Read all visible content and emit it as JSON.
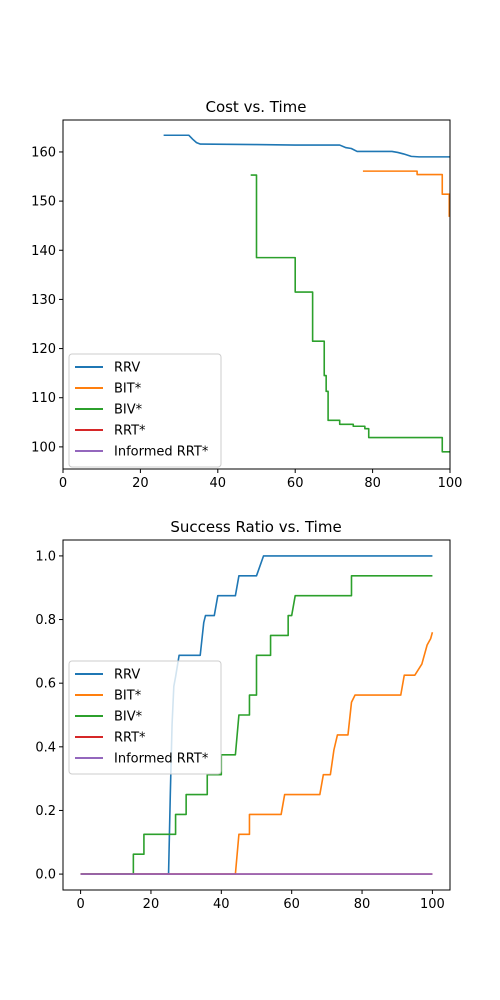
{
  "chart_data": [
    {
      "type": "line",
      "title": "Cost vs. Time",
      "xlabel": "",
      "ylabel": "",
      "xlim": [
        0,
        100
      ],
      "ylim": [
        95.5,
        166.5
      ],
      "xticks": [
        0,
        20,
        40,
        60,
        80,
        100
      ],
      "yticks": [
        100,
        110,
        120,
        130,
        140,
        150,
        160
      ],
      "grid": false,
      "legend": "lower-left",
      "series": [
        {
          "name": "RRV",
          "color": "#1f77b4",
          "points": [
            [
              26,
              163.4
            ],
            [
              32.5,
              163.4
            ],
            [
              33.5,
              162.6
            ],
            [
              34.5,
              161.9
            ],
            [
              35.5,
              161.6
            ],
            [
              50,
              161.5
            ],
            [
              60,
              161.4
            ],
            [
              71.5,
              161.4
            ],
            [
              73,
              160.9
            ],
            [
              74.5,
              160.7
            ],
            [
              76,
              160.1
            ],
            [
              85,
              160.1
            ],
            [
              86.5,
              159.9
            ],
            [
              88,
              159.6
            ],
            [
              90,
              159.1
            ],
            [
              92,
              159
            ],
            [
              100,
              159
            ]
          ]
        },
        {
          "name": "BIT*",
          "color": "#ff7f0e",
          "points": [
            [
              77.5,
              156.1
            ],
            [
              91.5,
              156.1
            ],
            [
              91.5,
              155.4
            ],
            [
              98,
              155.4
            ],
            [
              98,
              151.4
            ],
            [
              99.8,
              151.4
            ],
            [
              99.8,
              146.8
            ]
          ]
        },
        {
          "name": "BIV*",
          "color": "#2ca02c",
          "points": [
            [
              48.5,
              155.3
            ],
            [
              50,
              155.3
            ],
            [
              50,
              138.5
            ],
            [
              60,
              138.5
            ],
            [
              60,
              131.5
            ],
            [
              64.5,
              131.5
            ],
            [
              64.5,
              121.5
            ],
            [
              67.5,
              121.5
            ],
            [
              67.5,
              114.5
            ],
            [
              68,
              114.5
            ],
            [
              68,
              111.3
            ],
            [
              68.5,
              111.3
            ],
            [
              68.5,
              105.4
            ],
            [
              71.5,
              105.4
            ],
            [
              71.5,
              104.6
            ],
            [
              75,
              104.6
            ],
            [
              75,
              104.2
            ],
            [
              78,
              104.2
            ],
            [
              78,
              103.7
            ],
            [
              79,
              103.7
            ],
            [
              79,
              101.9
            ],
            [
              98,
              101.9
            ],
            [
              98,
              99
            ],
            [
              100,
              99
            ]
          ]
        },
        {
          "name": "RRT*",
          "color": "#d62728",
          "points": []
        },
        {
          "name": "Informed RRT*",
          "color": "#9467bd",
          "points": []
        }
      ]
    },
    {
      "type": "line",
      "title": "Success Ratio vs. Time",
      "xlabel": "",
      "ylabel": "",
      "xlim": [
        -5,
        105
      ],
      "ylim": [
        -0.05,
        1.05
      ],
      "xticks": [
        0,
        20,
        40,
        60,
        80,
        100
      ],
      "yticks": [
        0.0,
        0.2,
        0.4,
        0.6,
        0.8,
        1.0
      ],
      "ytick_labels": [
        "0.0",
        "0.2",
        "0.4",
        "0.6",
        "0.8",
        "1.0"
      ],
      "grid": false,
      "legend": "center-left",
      "series": [
        {
          "name": "RRV",
          "color": "#1f77b4",
          "points": [
            [
              0,
              0
            ],
            [
              25,
              0
            ],
            [
              25.5,
              0.25
            ],
            [
              26,
              0.47
            ],
            [
              26.5,
              0.59
            ],
            [
              27,
              0.62
            ],
            [
              28,
              0.6875
            ],
            [
              34,
              0.6875
            ],
            [
              35,
              0.79
            ],
            [
              35.5,
              0.8125
            ],
            [
              38,
              0.8125
            ],
            [
              39,
              0.875
            ],
            [
              44,
              0.875
            ],
            [
              45,
              0.9375
            ],
            [
              50,
              0.9375
            ],
            [
              52,
              1.0
            ],
            [
              100,
              1.0
            ]
          ]
        },
        {
          "name": "BIT*",
          "color": "#ff7f0e",
          "points": [
            [
              0,
              0
            ],
            [
              44,
              0
            ],
            [
              45,
              0.125
            ],
            [
              48,
              0.125
            ],
            [
              48,
              0.1875
            ],
            [
              57,
              0.1875
            ],
            [
              58,
              0.25
            ],
            [
              68,
              0.25
            ],
            [
              69,
              0.3125
            ],
            [
              71,
              0.3125
            ],
            [
              72,
              0.39
            ],
            [
              73,
              0.4375
            ],
            [
              76,
              0.4375
            ],
            [
              77,
              0.54
            ],
            [
              78,
              0.5625
            ],
            [
              91,
              0.5625
            ],
            [
              92,
              0.625
            ],
            [
              95,
              0.625
            ],
            [
              97,
              0.66
            ],
            [
              98.5,
              0.72
            ],
            [
              99.5,
              0.74
            ],
            [
              100,
              0.76
            ]
          ]
        },
        {
          "name": "BIV*",
          "color": "#2ca02c",
          "points": [
            [
              0,
              0
            ],
            [
              15,
              0
            ],
            [
              15,
              0.0625
            ],
            [
              18,
              0.0625
            ],
            [
              18,
              0.125
            ],
            [
              27,
              0.125
            ],
            [
              27,
              0.1875
            ],
            [
              30,
              0.1875
            ],
            [
              30,
              0.25
            ],
            [
              36,
              0.25
            ],
            [
              36,
              0.3125
            ],
            [
              40,
              0.3125
            ],
            [
              40,
              0.375
            ],
            [
              44,
              0.375
            ],
            [
              45,
              0.5
            ],
            [
              48,
              0.5
            ],
            [
              48,
              0.5625
            ],
            [
              50,
              0.5625
            ],
            [
              50,
              0.6875
            ],
            [
              54,
              0.6875
            ],
            [
              54,
              0.75
            ],
            [
              59,
              0.75
            ],
            [
              59,
              0.8125
            ],
            [
              60,
              0.8125
            ],
            [
              61,
              0.875
            ],
            [
              77,
              0.875
            ],
            [
              77,
              0.9375
            ],
            [
              100,
              0.9375
            ]
          ]
        },
        {
          "name": "RRT*",
          "color": "#d62728",
          "points": [
            [
              0,
              0
            ],
            [
              100,
              0
            ]
          ]
        },
        {
          "name": "Informed RRT*",
          "color": "#9467bd",
          "points": [
            [
              0,
              0
            ],
            [
              100,
              0
            ]
          ]
        }
      ]
    }
  ]
}
